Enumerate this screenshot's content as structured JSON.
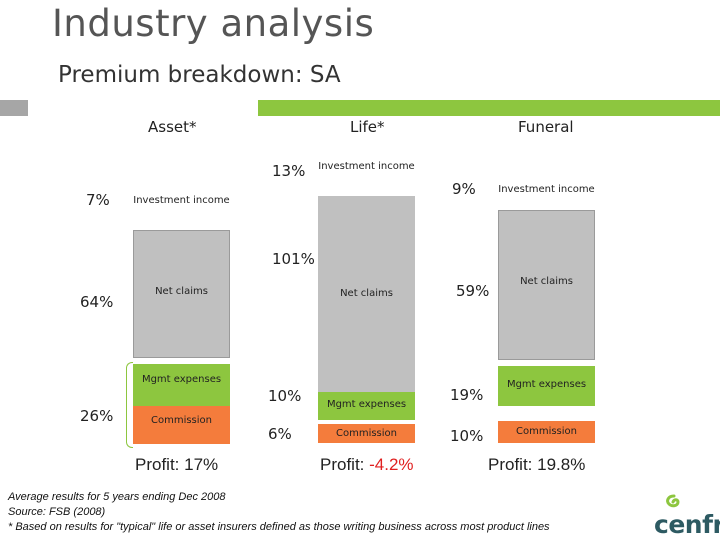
{
  "title": "Industry analysis",
  "subtitle": "Premium breakdown: SA",
  "chart_data": {
    "type": "bar",
    "stacked": true,
    "series_order": [
      "Investment income",
      "Net claims",
      "Mgmt expenses",
      "Commission"
    ],
    "columns": [
      {
        "name": "Asset*",
        "segments": [
          {
            "label": "Investment income",
            "value": 7,
            "value_label": "7%"
          },
          {
            "label": "Net claims",
            "value": 64,
            "value_label": "64%"
          },
          {
            "label": "Mgmt expenses",
            "value": null,
            "value_label": ""
          },
          {
            "label": "Commission",
            "value": null,
            "value_label": ""
          }
        ],
        "bracket_label": "26%",
        "profit_prefix": "Profit: ",
        "profit_value": "17%"
      },
      {
        "name": "Life*",
        "segments": [
          {
            "label": "Investment income",
            "value": 13,
            "value_label": "13%"
          },
          {
            "label": "Net claims",
            "value": 101,
            "value_label": "101%"
          },
          {
            "label": "Mgmt expenses",
            "value": 10,
            "value_label": "10%"
          },
          {
            "label": "Commission",
            "value": 6,
            "value_label": "6%"
          }
        ],
        "bracket_label": "",
        "profit_prefix": "Profit: ",
        "profit_value": "-4.2%"
      },
      {
        "name": "Funeral",
        "segments": [
          {
            "label": "Investment income",
            "value": 9,
            "value_label": "9%"
          },
          {
            "label": "Net claims",
            "value": 59,
            "value_label": "59%"
          },
          {
            "label": "Mgmt expenses",
            "value": 19,
            "value_label": "19%"
          },
          {
            "label": "Commission",
            "value": 10,
            "value_label": "10%"
          }
        ],
        "bracket_label": "",
        "profit_prefix": "Profit: ",
        "profit_value": "19.8%"
      }
    ],
    "colors": {
      "Investment income": "#ffffff",
      "Net claims": "#c0c0c0",
      "Mgmt expenses": "#8dc63f",
      "Commission": "#f47c3c",
      "accent_green": "#8dc63f",
      "negative": "#e02020"
    }
  },
  "segment_labels": {
    "investment_income": "Investment income",
    "net_claims": "Net claims",
    "mgmt_expenses": "Mgmt expenses",
    "commission": "Commission"
  },
  "footnotes": {
    "line1": "Average results for 5 years ending Dec 2008",
    "line2": "Source: FSB (2008)",
    "line3": "* Based on results for \"typical\" life or asset insurers defined as those writing business across most product lines"
  },
  "logo": {
    "text": "cenfri",
    "icon": "cenfri-swirl-logo"
  }
}
